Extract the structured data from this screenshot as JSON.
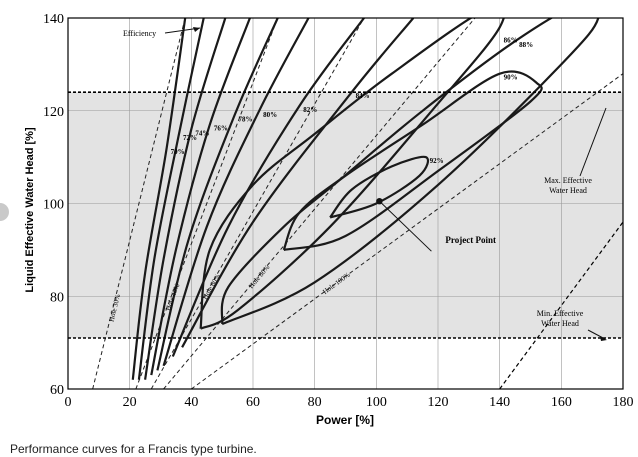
{
  "caption": "Performance curves for a Francis type turbine.",
  "colors": {
    "band": "#e3e3e3",
    "grid": "#9a9a9a",
    "curve": "#1a1a1a",
    "frame": "#000000"
  },
  "chart_data": {
    "type": "line",
    "xlabel": "Power [%]",
    "ylabel": "Liquid Effective Water Head [%]",
    "xlim": [
      0,
      180
    ],
    "ylim": [
      60,
      140
    ],
    "xticks": [
      0,
      20,
      40,
      60,
      80,
      100,
      120,
      140,
      160,
      180
    ],
    "yticks": [
      60,
      80,
      100,
      120,
      140
    ],
    "grid": true,
    "operating_range": {
      "max_head": 124,
      "min_head": 71
    },
    "efficiency_contours": [
      {
        "label": "70%",
        "points": [
          [
            21,
            62
          ],
          [
            25,
            85
          ],
          [
            32,
            112
          ],
          [
            38,
            140
          ]
        ]
      },
      {
        "label": "72%",
        "points": [
          [
            23,
            62
          ],
          [
            28,
            88
          ],
          [
            36,
            115
          ],
          [
            44,
            140
          ]
        ]
      },
      {
        "label": "74%",
        "points": [
          [
            25,
            62
          ],
          [
            31,
            88
          ],
          [
            40,
            116
          ],
          [
            51,
            140
          ]
        ]
      },
      {
        "label": "76%",
        "points": [
          [
            27,
            63
          ],
          [
            35,
            90
          ],
          [
            46,
            117
          ],
          [
            59,
            140
          ]
        ]
      },
      {
        "label": "78%",
        "points": [
          [
            29,
            64
          ],
          [
            39,
            92
          ],
          [
            54,
            119
          ],
          [
            68,
            140
          ]
        ]
      },
      {
        "label": "80%",
        "points": [
          [
            31,
            65
          ],
          [
            45,
            95
          ],
          [
            62,
            120
          ],
          [
            78,
            140
          ]
        ]
      },
      {
        "label": "82%",
        "points": [
          [
            34,
            67
          ],
          [
            52,
            95
          ],
          [
            75,
            121
          ],
          [
            96,
            140
          ]
        ]
      },
      {
        "label": "84%",
        "points": [
          [
            37,
            69
          ],
          [
            60,
            96
          ],
          [
            92,
            124
          ],
          [
            112,
            140
          ]
        ]
      },
      {
        "label": "86%",
        "points": [
          [
            43,
            73
          ],
          [
            55,
            77
          ],
          [
            85,
            95
          ],
          [
            118,
            120
          ],
          [
            140,
            138
          ],
          [
            136,
            142
          ],
          [
            105,
            128
          ],
          [
            80,
            115
          ],
          [
            60,
            104
          ],
          [
            46,
            90
          ],
          [
            43,
            73
          ]
        ]
      },
      {
        "label": "88%",
        "points": [
          [
            50,
            74
          ],
          [
            80,
            83
          ],
          [
            120,
            104
          ],
          [
            160,
            130
          ],
          [
            172,
            140
          ],
          [
            166,
            143
          ],
          [
            145,
            135
          ],
          [
            115,
            120
          ],
          [
            88,
            105
          ],
          [
            70,
            95
          ],
          [
            52,
            82
          ],
          [
            50,
            74
          ]
        ]
      },
      {
        "label": "90%",
        "points": [
          [
            70,
            90
          ],
          [
            90,
            93
          ],
          [
            120,
            107
          ],
          [
            150,
            122
          ],
          [
            152,
            126
          ],
          [
            140,
            128
          ],
          [
            115,
            117
          ],
          [
            90,
            106
          ],
          [
            75,
            98
          ],
          [
            70,
            90
          ]
        ]
      },
      {
        "label": "92%",
        "points": [
          [
            85,
            97
          ],
          [
            100,
            100
          ],
          [
            114,
            106
          ],
          [
            116,
            110
          ],
          [
            105,
            108
          ],
          [
            92,
            103
          ],
          [
            85,
            97
          ]
        ]
      }
    ],
    "guide_lines": [
      {
        "label": "Hole 30%",
        "points": [
          [
            8,
            60
          ],
          [
            38,
            140
          ]
        ]
      },
      {
        "label": "Hole 40%",
        "points": [
          [
            22,
            60
          ],
          [
            68,
            140
          ]
        ]
      },
      {
        "label": "Hole 60%",
        "points": [
          [
            27,
            60
          ],
          [
            96,
            140
          ]
        ]
      },
      {
        "label": "Hole 80%",
        "points": [
          [
            31,
            60
          ],
          [
            132,
            140
          ]
        ]
      },
      {
        "label": "Hole 100%",
        "points": [
          [
            40,
            60
          ],
          [
            180,
            128
          ]
        ]
      }
    ],
    "max_head_limit_line": {
      "points": [
        [
          140,
          60
        ],
        [
          180,
          96
        ]
      ]
    },
    "project_point": {
      "x": 101,
      "y": 100.5,
      "label": "Project Point"
    },
    "annotations": {
      "efficiency": "Efficiency",
      "max_effective_water_head": "Max. Effective Water Head",
      "min_effective_water_head": "Min. Effective Water Head",
      "project_point": "Project Point"
    }
  }
}
